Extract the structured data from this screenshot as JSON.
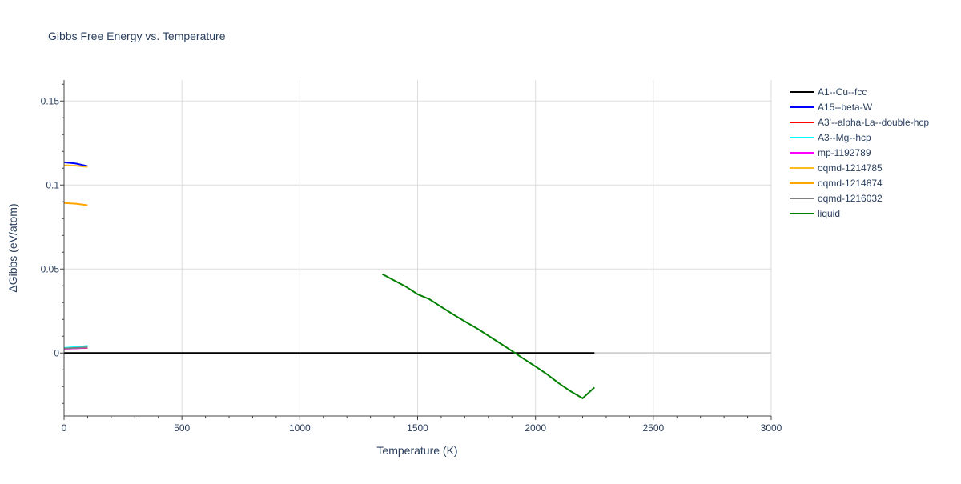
{
  "chart_data": {
    "type": "line",
    "title": "Gibbs Free Energy vs. Temperature",
    "xlabel": "Temperature (K)",
    "ylabel": "ΔGibbs (eV/atom)",
    "xlim": [
      0,
      3000
    ],
    "ylim": [
      -0.0375,
      0.1625
    ],
    "xticks": [
      0,
      500,
      1000,
      1500,
      2000,
      2500,
      3000
    ],
    "xtick_labels": [
      "0",
      "500",
      "1000",
      "1500",
      "2000",
      "2500",
      "3000"
    ],
    "yticks": [
      0,
      0.05,
      0.1,
      0.15
    ],
    "ytick_labels": [
      "0",
      "0.05",
      "0.1",
      "0.15"
    ],
    "grid": true,
    "legend_position": "right",
    "series": [
      {
        "name": "A1--Cu--fcc",
        "color": "#000000",
        "x": [
          0,
          2250
        ],
        "y": [
          0,
          0
        ]
      },
      {
        "name": "A15--beta-W",
        "color": "#0000ff",
        "x": [
          0,
          50,
          100
        ],
        "y": [
          0.1135,
          0.1128,
          0.1112
        ]
      },
      {
        "name": "A3'--alpha-La--double-hcp",
        "color": "#ff0000",
        "x": [
          0,
          50,
          100
        ],
        "y": [
          0.0028,
          0.0029,
          0.003
        ]
      },
      {
        "name": "A3--Mg--hcp",
        "color": "#00ffff",
        "x": [
          0,
          50,
          100
        ],
        "y": [
          0.003,
          0.0035,
          0.0042
        ]
      },
      {
        "name": "mp-1192789",
        "color": "#ff00ff",
        "x": [
          0,
          50,
          100
        ],
        "y": [
          0.0025,
          0.0028,
          0.0032
        ]
      },
      {
        "name": "oqmd-1214785",
        "color": "#ffbb22",
        "x": [
          0,
          50,
          100
        ],
        "y": [
          0.1118,
          0.1115,
          0.1108
        ]
      },
      {
        "name": "oqmd-1214874",
        "color": "#ffa500",
        "x": [
          0,
          50,
          100
        ],
        "y": [
          0.0893,
          0.0889,
          0.088
        ]
      },
      {
        "name": "oqmd-1216032",
        "color": "#808080",
        "x": [
          0,
          50,
          100
        ],
        "y": [
          0.0027,
          0.003,
          0.0034
        ]
      },
      {
        "name": "liquid",
        "color": "#008000",
        "x": [
          1350,
          1400,
          1450,
          1500,
          1550,
          1600,
          1650,
          1700,
          1750,
          1800,
          1850,
          1900,
          1950,
          2000,
          2050,
          2100,
          2150,
          2200,
          2250
        ],
        "y": [
          0.047,
          0.0432,
          0.0395,
          0.035,
          0.032,
          0.0275,
          0.023,
          0.0188,
          0.0148,
          0.0103,
          0.0058,
          0.0012,
          -0.0035,
          -0.008,
          -0.0128,
          -0.0181,
          -0.0229,
          -0.027,
          -0.0205
        ]
      }
    ]
  }
}
